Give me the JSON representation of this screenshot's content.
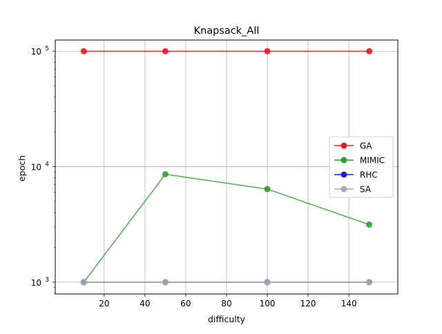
{
  "chart_data": {
    "type": "line",
    "title": "Knapsack_All",
    "xlabel": "difficulty",
    "ylabel": "epoch",
    "yscale": "log",
    "xlim": [
      -4,
      164
    ],
    "ylim": [
      790,
      125000
    ],
    "x": [
      10,
      50,
      100,
      150
    ],
    "xticks": [
      20,
      40,
      60,
      80,
      100,
      120,
      140
    ],
    "xtick_labels": [
      "20",
      "40",
      "60",
      "80",
      "100",
      "120",
      "140"
    ],
    "yticks": [
      1000,
      10000,
      100000
    ],
    "ytick_bases": [
      "10",
      "10",
      "10"
    ],
    "ytick_exponents": [
      "3",
      "4",
      "5"
    ],
    "grid": true,
    "legend_position": "center-right",
    "series": [
      {
        "name": "GA",
        "color": "#e31a1c",
        "values": [
          100000,
          100000,
          100000,
          100000
        ]
      },
      {
        "name": "MIMIC",
        "color": "#2ca02c",
        "values": [
          1000,
          8600,
          6400,
          3150
        ]
      },
      {
        "name": "RHC",
        "color": "#1f1fe8",
        "values": [
          1000,
          1000,
          1000,
          1000
        ]
      },
      {
        "name": "SA",
        "color": "#aaaaaa",
        "values": [
          1000,
          1000,
          1000,
          1000
        ]
      }
    ]
  }
}
